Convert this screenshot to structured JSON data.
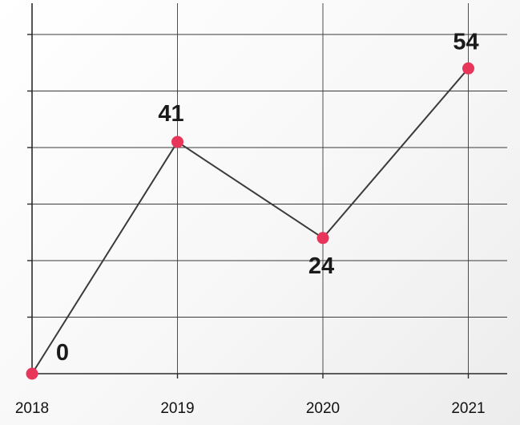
{
  "chart_data": {
    "type": "line",
    "categories": [
      "2018",
      "2019",
      "2020",
      "2021"
    ],
    "series": [
      {
        "values": [
          0,
          41,
          24,
          54
        ]
      }
    ],
    "data_labels": [
      "0",
      "41",
      "24",
      "54"
    ],
    "title": "",
    "xlabel": "",
    "ylabel": "",
    "ylim": [
      0,
      60
    ],
    "y_gridlines": [
      10,
      20,
      30,
      40,
      50,
      60
    ],
    "grid": true,
    "legend": "none",
    "colors": {
      "line": "#3b3b3b",
      "marker": "#e8365a",
      "grid": "#3a3a3a",
      "text": "#111111"
    }
  }
}
